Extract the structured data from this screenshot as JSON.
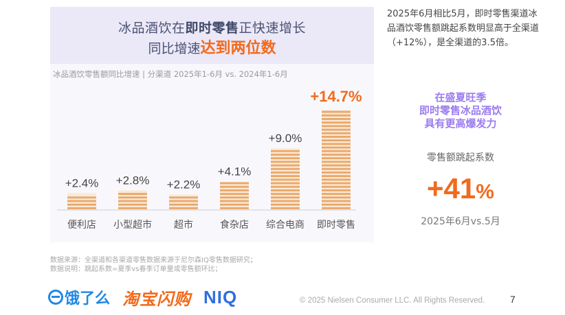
{
  "header": {
    "line1_pre": "冰品酒饮在",
    "line1_bold": "即时零售",
    "line1_post": "正快速增长",
    "line2_pre": "同比增速",
    "line2_highlight": "达到两位数"
  },
  "chart_data": {
    "type": "bar",
    "title": "冰品酒饮零售额同比增速 | 分渠道 2025年1-6月 vs. 2024年1-6月",
    "xlabel": "",
    "ylabel": "",
    "categories": [
      "便利店",
      "小型超市",
      "超市",
      "食杂店",
      "综合电商",
      "即时零售"
    ],
    "values": [
      2.4,
      2.8,
      2.2,
      4.1,
      9.0,
      14.7
    ],
    "labels": [
      "+2.4%",
      "+2.8%",
      "+2.2%",
      "+4.1%",
      "+9.0%",
      "+14.7%"
    ],
    "highlight_index": 5,
    "ylim": [
      0,
      15
    ],
    "grid": false,
    "colors": {
      "bar": "#e8a86a",
      "bar_light": "#fbe9d6",
      "highlight_label": "#f26a1b",
      "label": "#444444"
    }
  },
  "right_note": "2025年6月相比5月，即时零售渠道冰品酒饮零售额跳起系数明显高于全渠道（+12%），是全渠道的3.5倍。",
  "promo": {
    "line1": "在盛夏旺季",
    "line2": "即时零售冰品酒饮",
    "line3": "具有更高爆发力"
  },
  "metric": {
    "label": "零售额跳起系数",
    "value": "+41",
    "unit": "%",
    "period": "2025年6月vs.5月"
  },
  "source": {
    "line1": "数据来源：全渠道和各渠道零售数据来源于尼尔森IQ零售数据研究；",
    "line2": "数据说明：跳起系数=夏季vs春季订单量或零售额环比；"
  },
  "logos": {
    "eleme": "饿了么",
    "taobao": "淘宝闪购",
    "niq": "NIQ"
  },
  "footer": {
    "copyright": "© 2025 Nielsen Consumer LLC. All Rights Reserved.",
    "page": "7"
  },
  "colors": {
    "accent_orange": "#f26a1b",
    "accent_purple": "#9b7cf0",
    "header_bg": "#ebe8f8",
    "panel_bg": "#f8f8fc"
  }
}
